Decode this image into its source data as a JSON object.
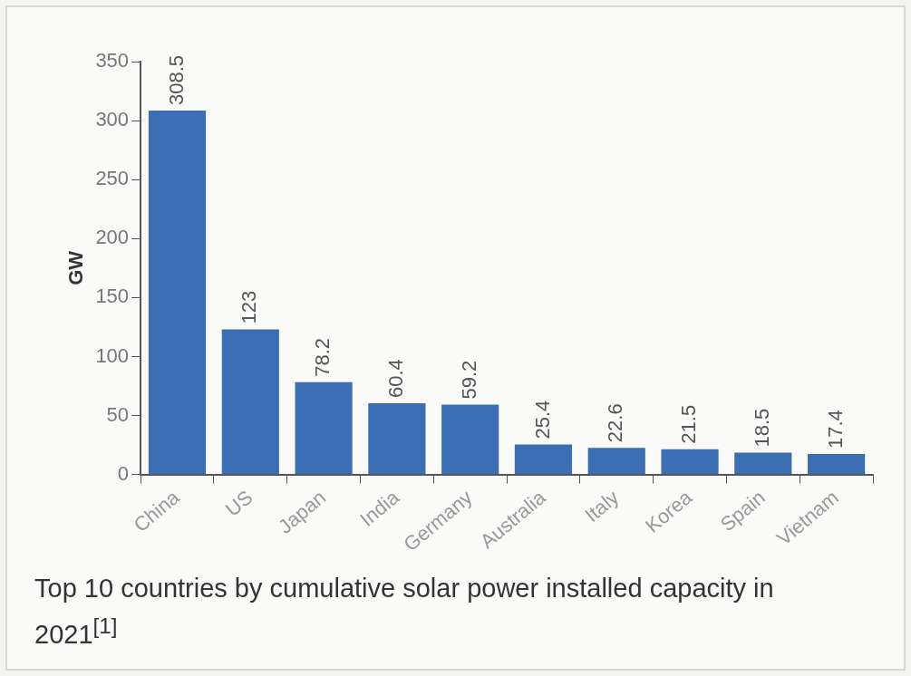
{
  "chart_data": {
    "type": "bar",
    "ylabel": "GW",
    "categories": [
      "China",
      "US",
      "Japan",
      "India",
      "Germany",
      "Australia",
      "Italy",
      "Korea",
      "Spain",
      "Vietnam"
    ],
    "values": [
      308.5,
      123,
      78.2,
      60.4,
      59.2,
      25.4,
      22.6,
      21.5,
      18.5,
      17.4
    ],
    "color": "#3c6eb4",
    "ylim": [
      0,
      350
    ],
    "yticks": [
      0,
      50,
      100,
      150,
      200,
      250,
      300,
      350
    ],
    "grid": false,
    "legend": false,
    "data_labels": true,
    "annotations": [
      "Top 10 countries by cumulative solar power installed capacity in 2021$^{[1]}$"
    ]
  }
}
